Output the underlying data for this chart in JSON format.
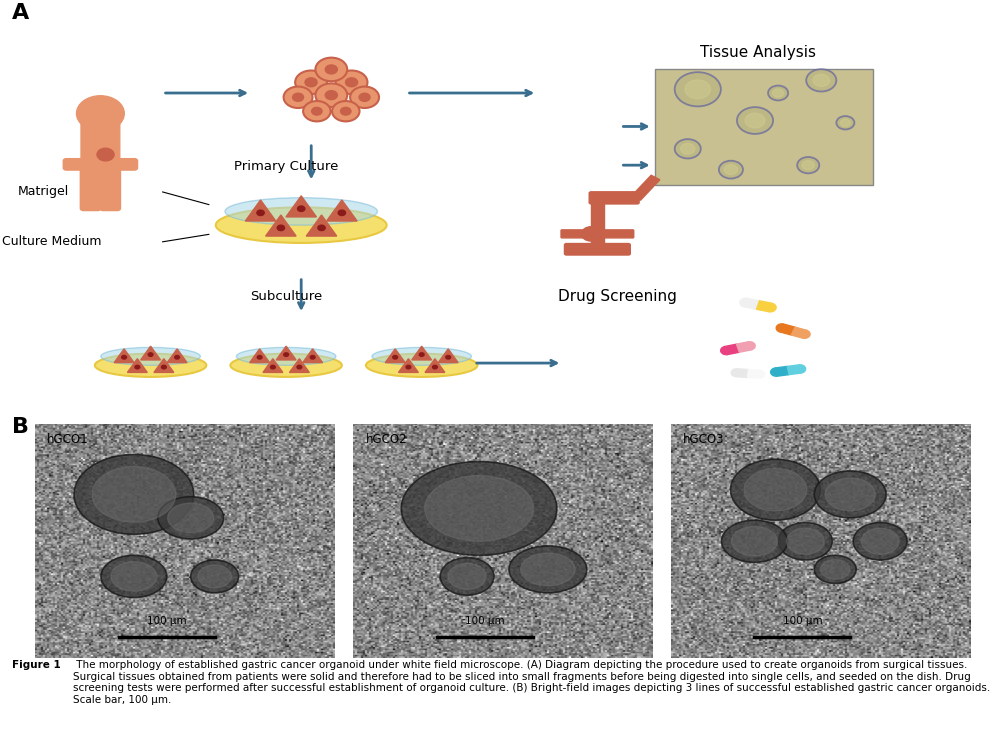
{
  "figure_width": 10.04,
  "figure_height": 7.44,
  "dpi": 100,
  "background_color": "#ffffff",
  "panel_A_label": "A",
  "panel_B_label": "B",
  "label_fontsize": 16,
  "label_fontweight": "bold",
  "primary_culture_text": "Primary Culture",
  "matrigel_text": "Matrigel",
  "culture_medium_text": "Culture Medium",
  "subculture_text": "Subculture",
  "tissue_analysis_text": "Tissue Analysis",
  "drug_screening_text": "Drug Screening",
  "hgco1_label": "hGCO1",
  "hgco2_label": "hGCO2",
  "hgco3_label": "hGCO3",
  "scale_bar_text": "100 μm",
  "caption_bold": "Figure 1",
  "caption_rest": " The morphology of established gastric cancer organoid under white field microscope. (A) Diagram depicting the procedure used to create organoids from surgical tissues. Surgical tissues obtained from patients were solid and therefore had to be sliced into small fragments before being digested into single cells, and seeded on the dish. Drug screening tests were performed after successful establishment of organoid culture. (B) Bright-field images depicting 3 lines of successful established gastric cancer organoids. Scale bar, 100 μm.",
  "caption_fontsize": 7.5,
  "salmon_color": "#E8956D",
  "dark_salmon": "#C8614A",
  "arrow_color": "#3A6E8F",
  "dish_yellow": "#F5E06E",
  "dish_outline": "#E8C840",
  "matrigel_blue": "#A8D8E8",
  "text_color": "#000000",
  "label_color": "#000000"
}
